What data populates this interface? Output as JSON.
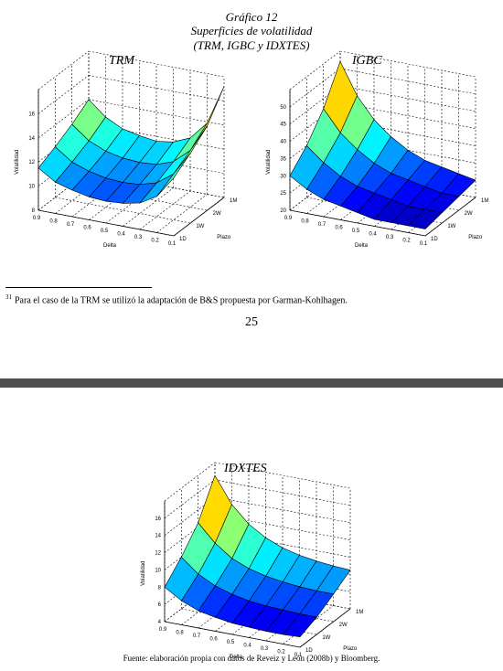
{
  "figure": {
    "caption": "Gráfico 12",
    "title": "Superficies de volatilidad",
    "subtitle": "(TRM, IGBC y IDXTES)"
  },
  "axis_labels": {
    "x": "Delta",
    "y": "Volatilidad",
    "z": "Plazo"
  },
  "footnote": {
    "marker": "31",
    "text": "Para el caso de la TRM se utilizó la adaptación de B&S propuesta por Garman-Kohlhagen."
  },
  "page_number": "25",
  "source": "Fuente: elaboración propia con datos de Reveiz y León (2008b) y Bloomberg.",
  "colors": {
    "separator": "#4f4f4f",
    "colormap": "jet"
  },
  "chart_data": [
    {
      "type": "surface",
      "title": "TRM",
      "xlabel": "Delta",
      "ylabel": "Volatilidad",
      "zlabel": "Plazo",
      "delta": [
        0.9,
        0.8,
        0.7,
        0.6,
        0.5,
        0.4,
        0.3,
        0.2,
        0.1
      ],
      "plazo": [
        "1D",
        "1W",
        "2W",
        "1M"
      ],
      "plazo_ticks_shown": [
        "1D",
        "1W",
        "2W",
        "1M"
      ],
      "zlim": [
        8,
        18
      ],
      "zticks": [
        "8",
        "10",
        "12",
        "14",
        "16"
      ],
      "values": [
        [
          11.5,
          10.6,
          10.2,
          9.9,
          9.8,
          9.9,
          10.2,
          11.0,
          12.8
        ],
        [
          12.2,
          11.2,
          10.7,
          10.4,
          10.3,
          10.4,
          10.8,
          11.8,
          13.8
        ],
        [
          13.0,
          11.9,
          11.3,
          11.0,
          10.9,
          11.0,
          11.5,
          12.7,
          15.0
        ],
        [
          14.0,
          12.8,
          12.1,
          11.8,
          11.6,
          11.8,
          12.4,
          13.9,
          17.2
        ]
      ]
    },
    {
      "type": "surface",
      "title": "IGBC",
      "xlabel": "Delta",
      "ylabel": "Volatilidad",
      "zlabel": "Plazo",
      "delta": [
        0.9,
        0.8,
        0.7,
        0.6,
        0.5,
        0.4,
        0.3,
        0.2,
        0.1
      ],
      "plazo": [
        "1D",
        "1W",
        "2W",
        "1M"
      ],
      "plazo_ticks_shown": [
        "1D",
        "1W",
        "2W",
        "1M"
      ],
      "zlim": [
        20,
        55
      ],
      "zticks": [
        "20",
        "25",
        "30",
        "35",
        "40",
        "45",
        "50"
      ],
      "values": [
        [
          30,
          27,
          25,
          24,
          23,
          22,
          22,
          22,
          22
        ],
        [
          35,
          31,
          28,
          26,
          25,
          24,
          23,
          23,
          23
        ],
        [
          42,
          36,
          32,
          29,
          27,
          26,
          25,
          24,
          24
        ],
        [
          52,
          43,
          37,
          33,
          30,
          28,
          27,
          26,
          25
        ]
      ]
    },
    {
      "type": "surface",
      "title": "IDXTES",
      "xlabel": "Delta",
      "ylabel": "Volatilidad",
      "zlabel": "Plazo",
      "delta": [
        0.9,
        0.8,
        0.7,
        0.6,
        0.5,
        0.4,
        0.3,
        0.2,
        0.1
      ],
      "plazo": [
        "1D",
        "1W",
        "2W",
        "1M"
      ],
      "plazo_ticks_shown": [
        "1D",
        "1W",
        "2W",
        "1M"
      ],
      "zlim": [
        4,
        18
      ],
      "zticks": [
        "4",
        "6",
        "8",
        "10",
        "12",
        "14",
        "16"
      ],
      "values": [
        [
          8.0,
          6.8,
          6.0,
          5.6,
          5.3,
          5.2,
          5.1,
          5.1,
          5.2
        ],
        [
          10.0,
          8.4,
          7.4,
          6.8,
          6.4,
          6.2,
          6.1,
          6.0,
          6.0
        ],
        [
          12.5,
          10.5,
          9.1,
          8.3,
          7.8,
          7.5,
          7.3,
          7.2,
          7.2
        ],
        [
          16.5,
          13.5,
          11.6,
          10.4,
          9.6,
          9.1,
          8.8,
          8.6,
          8.5
        ]
      ]
    }
  ]
}
